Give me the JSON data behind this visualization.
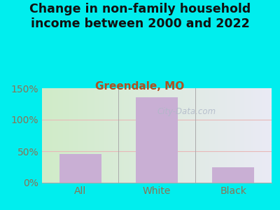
{
  "title": "Change in non-family household\nincome between 2000 and 2022",
  "subtitle": "Greendale, MO",
  "categories": [
    "All",
    "White",
    "Black"
  ],
  "values": [
    46,
    136,
    25
  ],
  "bar_color": "#c9afd4",
  "title_fontsize": 12.5,
  "subtitle_fontsize": 11,
  "subtitle_color": "#b05020",
  "title_color": "#111111",
  "tick_label_color": "#8B7355",
  "xlabel_color": "#8B7355",
  "ylim": [
    0,
    150
  ],
  "yticks": [
    0,
    50,
    100,
    150
  ],
  "ytick_labels": [
    "0%",
    "50%",
    "100%",
    "150%"
  ],
  "background_outer": "#00EEEE",
  "background_plot_left": "#d0ecc8",
  "background_plot_right": "#eaeaf5",
  "grid_color": "#e8b8b8",
  "watermark": "City-Data.com",
  "watermark_color": "#b0b8c8"
}
